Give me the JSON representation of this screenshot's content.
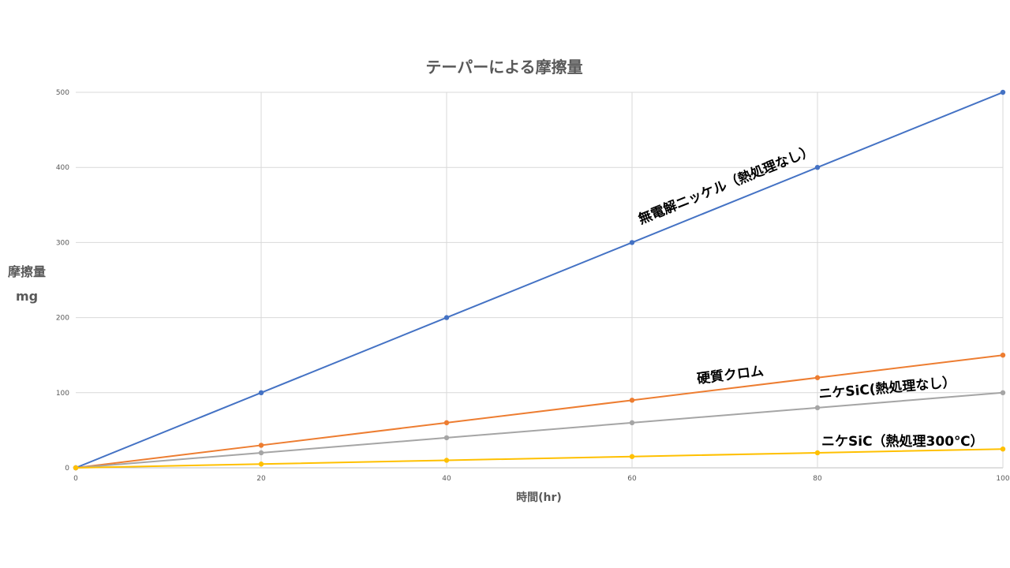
{
  "chart_data": {
    "type": "line",
    "title": "テーパーによる摩擦量",
    "xlabel": "時間(hr)",
    "ylabel": [
      "摩擦量",
      "mg"
    ],
    "x": [
      0,
      20,
      40,
      60,
      80,
      100
    ],
    "xlim": [
      0,
      100
    ],
    "ylim": [
      0,
      500
    ],
    "xticks": [
      0,
      20,
      40,
      60,
      80,
      100
    ],
    "yticks": [
      0,
      100,
      200,
      300,
      400,
      500
    ],
    "grid": true,
    "legend": "none",
    "series": [
      {
        "name": "無電解ニッケル（熱処理なし）",
        "color": "#4472c4",
        "values": [
          0,
          100,
          200,
          300,
          400,
          500
        ]
      },
      {
        "name": "硬質クロム",
        "color": "#ed7d31",
        "values": [
          0,
          30,
          60,
          90,
          120,
          150
        ]
      },
      {
        "name": "ニケSiC(熱処理なし）",
        "color": "#a5a5a5",
        "values": [
          0,
          20,
          40,
          60,
          80,
          100
        ]
      },
      {
        "name": "ニケSiC（熱処理300℃）",
        "color": "#ffc000",
        "values": [
          0,
          5,
          10,
          15,
          20,
          25
        ]
      }
    ]
  }
}
